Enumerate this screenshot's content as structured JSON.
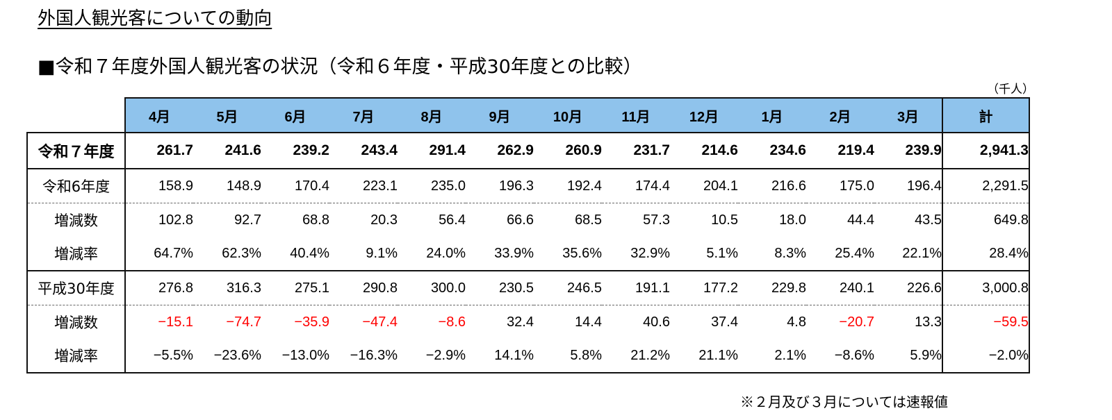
{
  "page_title": "外国人観光客についての動向",
  "section_title": "■令和７年度外国人観光客の状況（令和６年度・平成30年度との比較）",
  "unit": "（千人）",
  "table": {
    "headers": [
      "4月",
      "5月",
      "6月",
      "7月",
      "8月",
      "9月",
      "10月",
      "11月",
      "12月",
      "1月",
      "2月",
      "3月",
      "計"
    ],
    "rows": [
      {
        "label": "令和７年度",
        "values": [
          "261.7",
          "241.6",
          "239.2",
          "243.4",
          "291.4",
          "262.9",
          "260.9",
          "231.7",
          "214.6",
          "234.6",
          "219.4",
          "239.9"
        ],
        "total": "2,941.3"
      },
      {
        "label": "令和6年度",
        "values": [
          "158.9",
          "148.9",
          "170.4",
          "223.1",
          "235.0",
          "196.3",
          "192.4",
          "174.4",
          "204.1",
          "216.6",
          "175.0",
          "196.4"
        ],
        "total": "2,291.5"
      },
      {
        "label": "増減数",
        "values": [
          "102.8",
          "92.7",
          "68.8",
          "20.3",
          "56.4",
          "66.6",
          "68.5",
          "57.3",
          "10.5",
          "18.0",
          "44.4",
          "43.5"
        ],
        "total": "649.8"
      },
      {
        "label": "増減率",
        "values": [
          "64.7%",
          "62.3%",
          "40.4%",
          "9.1%",
          "24.0%",
          "33.9%",
          "35.6%",
          "32.9%",
          "5.1%",
          "8.3%",
          "25.4%",
          "22.1%"
        ],
        "total": "28.4%"
      },
      {
        "label": "平成30年度",
        "values": [
          "276.8",
          "316.3",
          "275.1",
          "290.8",
          "300.0",
          "230.5",
          "246.5",
          "191.1",
          "177.2",
          "229.8",
          "240.1",
          "226.6"
        ],
        "total": "3,000.8"
      },
      {
        "label": "増減数",
        "values": [
          "−15.1",
          "−74.7",
          "−35.9",
          "−47.4",
          "−8.6",
          "32.4",
          "14.4",
          "40.6",
          "37.4",
          "4.8",
          "−20.7",
          "13.3"
        ],
        "total": "−59.5"
      },
      {
        "label": "増減率",
        "values": [
          "−5.5%",
          "−23.6%",
          "−13.0%",
          "−16.3%",
          "−2.9%",
          "14.1%",
          "5.8%",
          "21.2%",
          "21.1%",
          "2.1%",
          "−8.6%",
          "5.9%"
        ],
        "total": "−2.0%"
      }
    ]
  },
  "colors": {
    "header_bg": "#8fc3ec",
    "negative": "#ff0000"
  },
  "note": "※２月及び３月については速報値"
}
